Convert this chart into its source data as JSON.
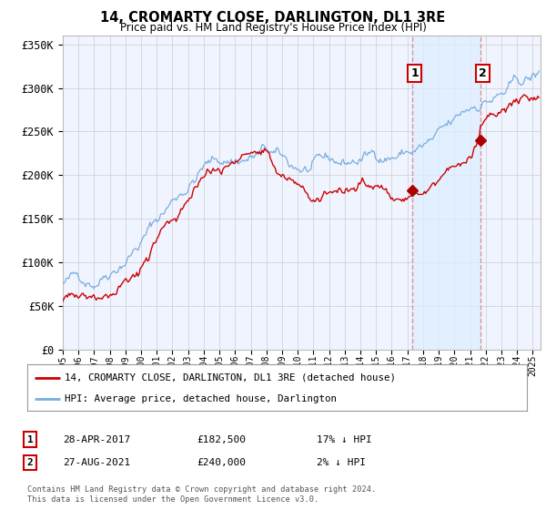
{
  "title": "14, CROMARTY CLOSE, DARLINGTON, DL1 3RE",
  "subtitle": "Price paid vs. HM Land Registry's House Price Index (HPI)",
  "ylabel_ticks": [
    "£0",
    "£50K",
    "£100K",
    "£150K",
    "£200K",
    "£250K",
    "£300K",
    "£350K"
  ],
  "ylim": [
    0,
    360000
  ],
  "xlim_start": 1995.0,
  "xlim_end": 2025.5,
  "sale1_date": 2017.32,
  "sale1_price": 182500,
  "sale1_label": "1",
  "sale2_date": 2021.65,
  "sale2_price": 240000,
  "sale2_label": "2",
  "red_line_color": "#cc0000",
  "blue_line_color": "#7aade0",
  "marker_color": "#aa0000",
  "vline_color": "#dd8888",
  "shade_color": "#ddeeff",
  "bg_color": "#f0f4ff",
  "grid_color": "#cccccc",
  "legend_label_red": "14, CROMARTY CLOSE, DARLINGTON, DL1 3RE (detached house)",
  "legend_label_blue": "HPI: Average price, detached house, Darlington",
  "footnote": "Contains HM Land Registry data © Crown copyright and database right 2024.\nThis data is licensed under the Open Government Licence v3.0.",
  "xtick_years": [
    1995,
    1996,
    1997,
    1998,
    1999,
    2000,
    2001,
    2002,
    2003,
    2004,
    2005,
    2006,
    2007,
    2008,
    2009,
    2010,
    2011,
    2012,
    2013,
    2014,
    2015,
    2016,
    2017,
    2018,
    2019,
    2020,
    2021,
    2022,
    2023,
    2024,
    2025
  ]
}
